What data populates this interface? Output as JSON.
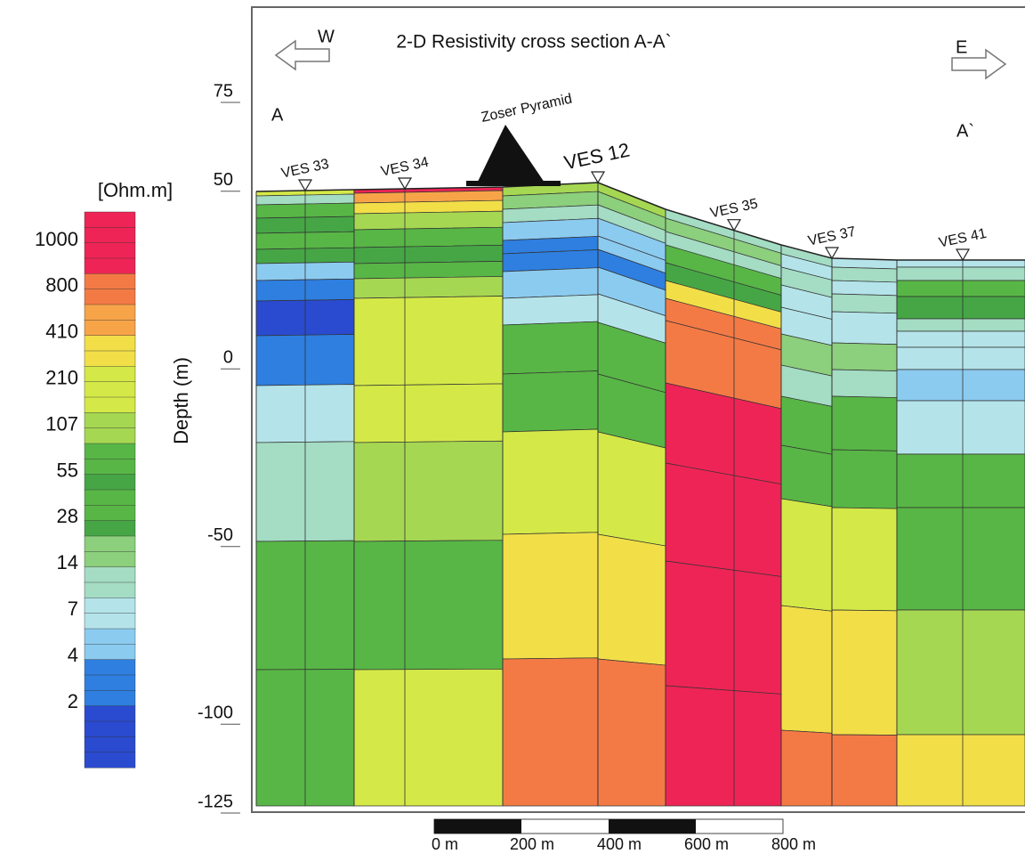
{
  "chart_data": {
    "type": "cross-section",
    "title": "2-D Resistivity cross section A-A`",
    "west_label": "W",
    "east_label": "E",
    "start_label": "A",
    "end_label": "A`",
    "landmark": "Zoser Pyramid",
    "stations": [
      "VES 33",
      "VES 34",
      "VES 12",
      "VES 35",
      "VES 37",
      "VES 41"
    ],
    "ylabel": "Depth   (m)",
    "ylim": [
      -125,
      75
    ],
    "yticks": [
      75,
      50,
      0,
      -50,
      -100,
      -125
    ],
    "colorbar_title": "[Ohm.m]",
    "colorbar_ticks": [
      1000,
      800,
      410,
      210,
      107,
      55,
      28,
      14,
      7,
      4,
      2
    ],
    "scale_bar_labels": [
      "0 m",
      "200 m",
      "400 m",
      "600 m",
      "800 m"
    ]
  }
}
